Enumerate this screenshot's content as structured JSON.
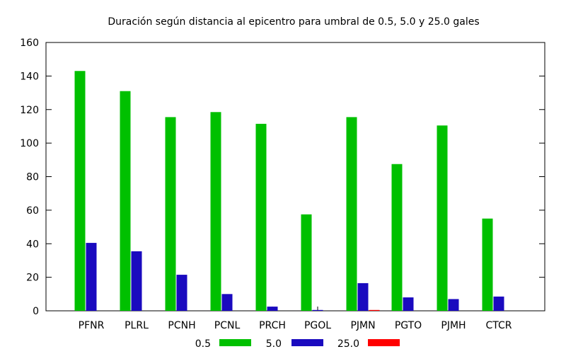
{
  "chart_data": {
    "type": "bar",
    "title": "Duración según distancia al epicentro para umbral de 0.5, 5.0 y 25.0 gales",
    "xlabel": "",
    "ylabel": "",
    "ylim": [
      0,
      160
    ],
    "yticks": [
      0,
      20,
      40,
      60,
      80,
      100,
      120,
      140,
      160
    ],
    "grid": false,
    "legend_position": "bottom",
    "categories": [
      "PFNR",
      "PLRL",
      "PCNH",
      "PCNL",
      "PRCH",
      "PGOL",
      "PJMN",
      "PGTO",
      "PJMH",
      "CTCR"
    ],
    "series": [
      {
        "name": "0.5",
        "color": "#00c000",
        "values": [
          143,
          131,
          115.5,
          118.5,
          111.5,
          57.5,
          115.5,
          87.5,
          110.5,
          55
        ]
      },
      {
        "name": "5.0",
        "color": "#1a0abf",
        "values": [
          40.5,
          35.5,
          21.5,
          10,
          2.5,
          0.5,
          16.5,
          8,
          7,
          8.5
        ]
      },
      {
        "name": "25.0",
        "color": "#ff0000",
        "values": [
          0,
          0,
          0,
          0,
          0,
          0,
          0.5,
          0,
          0,
          0
        ]
      }
    ]
  }
}
